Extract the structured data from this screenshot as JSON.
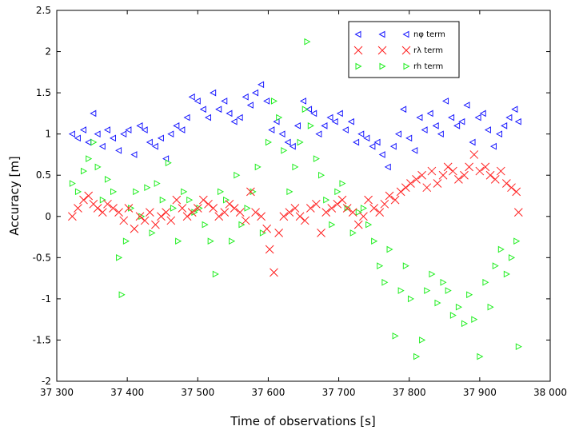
{
  "chart_data": {
    "type": "scatter",
    "xlabel": "Time of observations [s]",
    "ylabel": "Accuracy [m]",
    "xlim": [
      37300,
      38000
    ],
    "ylim": [
      -2,
      2.5
    ],
    "xticks": [
      37300,
      37400,
      37500,
      37600,
      37700,
      37800,
      37900,
      38000
    ],
    "xtick_labels": [
      "37 300",
      "37 400",
      "37 500",
      "37 600",
      "37 700",
      "37 800",
      "37 900",
      "38 000"
    ],
    "yticks": [
      -2,
      -1.5,
      -1,
      -0.5,
      0,
      0.5,
      1,
      1.5,
      2,
      2.5
    ],
    "ytick_labels": [
      "-2",
      "-1.5",
      "-1",
      "-0.5",
      "0",
      "0.5",
      "1",
      "1.5",
      "2",
      "2.5"
    ],
    "grid": false,
    "legend_position": "top-right",
    "series": [
      {
        "name": "nφ term",
        "marker": "triangle-left",
        "color": "#1a1aff",
        "x": [
          37322,
          37330,
          37338,
          37345,
          37352,
          37358,
          37365,
          37372,
          37380,
          37388,
          37395,
          37402,
          37410,
          37418,
          37425,
          37432,
          37440,
          37448,
          37455,
          37462,
          37470,
          37478,
          37485,
          37492,
          37500,
          37508,
          37515,
          37522,
          37530,
          37538,
          37545,
          37552,
          37560,
          37568,
          37575,
          37582,
          37590,
          37598,
          37605,
          37612,
          37620,
          37628,
          37635,
          37642,
          37650,
          37658,
          37665,
          37672,
          37680,
          37688,
          37695,
          37702,
          37710,
          37718,
          37725,
          37732,
          37740,
          37748,
          37755,
          37762,
          37770,
          37778,
          37785,
          37792,
          37800,
          37808,
          37815,
          37822,
          37830,
          37838,
          37845,
          37852,
          37860,
          37868,
          37875,
          37882,
          37890,
          37898,
          37905,
          37912,
          37920,
          37928,
          37935,
          37942,
          37950,
          37955
        ],
        "y": [
          1.0,
          0.95,
          1.05,
          0.9,
          1.25,
          1.0,
          0.85,
          1.05,
          0.95,
          0.8,
          1.0,
          1.05,
          0.75,
          1.1,
          1.05,
          0.9,
          0.85,
          0.95,
          0.7,
          1.0,
          1.1,
          1.05,
          1.2,
          1.45,
          1.4,
          1.3,
          1.2,
          1.5,
          1.3,
          1.4,
          1.25,
          1.15,
          1.2,
          1.45,
          1.35,
          1.5,
          1.6,
          1.4,
          1.05,
          1.15,
          1.0,
          0.9,
          0.85,
          1.1,
          1.4,
          1.3,
          1.25,
          1.0,
          1.1,
          1.2,
          1.15,
          1.25,
          1.05,
          1.15,
          0.9,
          1.0,
          0.95,
          0.85,
          0.9,
          0.75,
          0.6,
          0.85,
          1.0,
          1.3,
          0.95,
          0.8,
          1.2,
          1.05,
          1.25,
          1.1,
          1.0,
          1.4,
          1.2,
          1.1,
          1.15,
          1.35,
          0.9,
          1.2,
          1.25,
          1.05,
          0.85,
          1.0,
          1.1,
          1.2,
          1.3,
          1.15
        ]
      },
      {
        "name": "rλ term",
        "marker": "x",
        "color": "#ff2020",
        "x": [
          37322,
          37330,
          37338,
          37345,
          37352,
          37358,
          37365,
          37372,
          37380,
          37388,
          37395,
          37402,
          37410,
          37418,
          37425,
          37432,
          37440,
          37448,
          37455,
          37462,
          37470,
          37478,
          37485,
          37492,
          37500,
          37508,
          37515,
          37522,
          37530,
          37538,
          37545,
          37552,
          37560,
          37568,
          37575,
          37582,
          37590,
          37598,
          37602,
          37608,
          37615,
          37622,
          37630,
          37638,
          37645,
          37652,
          37660,
          37668,
          37675,
          37682,
          37690,
          37698,
          37705,
          37712,
          37720,
          37728,
          37735,
          37742,
          37750,
          37758,
          37765,
          37772,
          37780,
          37788,
          37795,
          37802,
          37810,
          37818,
          37825,
          37832,
          37840,
          37848,
          37855,
          37862,
          37870,
          37878,
          37885,
          37892,
          37900,
          37908,
          37915,
          37922,
          37930,
          37938,
          37945,
          37952,
          37955
        ],
        "y": [
          0.0,
          0.1,
          0.2,
          0.25,
          0.15,
          0.1,
          0.05,
          0.15,
          0.1,
          0.05,
          -0.05,
          0.1,
          -0.15,
          0.0,
          -0.05,
          0.05,
          -0.1,
          0.0,
          0.05,
          -0.05,
          0.2,
          0.1,
          0.0,
          0.05,
          0.1,
          0.2,
          0.15,
          0.1,
          0.0,
          0.05,
          0.15,
          0.1,
          0.05,
          -0.05,
          0.3,
          0.05,
          0.0,
          -0.15,
          -0.4,
          -0.68,
          -0.2,
          0.0,
          0.05,
          0.1,
          0.0,
          -0.05,
          0.1,
          0.15,
          -0.2,
          0.05,
          0.1,
          0.15,
          0.2,
          0.1,
          0.05,
          -0.1,
          0.0,
          0.2,
          0.1,
          0.05,
          0.15,
          0.25,
          0.2,
          0.3,
          0.35,
          0.4,
          0.45,
          0.5,
          0.35,
          0.55,
          0.4,
          0.5,
          0.6,
          0.55,
          0.45,
          0.5,
          0.6,
          0.75,
          0.55,
          0.6,
          0.5,
          0.45,
          0.55,
          0.4,
          0.35,
          0.3,
          0.05
        ]
      },
      {
        "name": "rh term",
        "marker": "triangle-right",
        "color": "#22ee22",
        "x": [
          37322,
          37330,
          37338,
          37345,
          37352,
          37358,
          37365,
          37372,
          37380,
          37388,
          37392,
          37398,
          37405,
          37412,
          37420,
          37428,
          37435,
          37442,
          37450,
          37458,
          37465,
          37472,
          37480,
          37488,
          37495,
          37502,
          37510,
          37518,
          37525,
          37532,
          37540,
          37548,
          37555,
          37562,
          37570,
          37578,
          37585,
          37592,
          37600,
          37608,
          37615,
          37622,
          37630,
          37638,
          37645,
          37652,
          37655,
          37660,
          37668,
          37675,
          37682,
          37690,
          37698,
          37705,
          37712,
          37720,
          37728,
          37735,
          37742,
          37750,
          37758,
          37765,
          37772,
          37780,
          37788,
          37795,
          37802,
          37810,
          37818,
          37825,
          37832,
          37840,
          37848,
          37855,
          37862,
          37870,
          37878,
          37885,
          37892,
          37900,
          37908,
          37915,
          37922,
          37930,
          37938,
          37945,
          37952,
          37955
        ],
        "y": [
          0.4,
          0.3,
          0.55,
          0.7,
          0.9,
          0.6,
          0.2,
          0.45,
          0.3,
          -0.5,
          -0.95,
          -0.3,
          0.1,
          0.3,
          0.0,
          0.35,
          -0.2,
          0.4,
          0.2,
          0.65,
          0.1,
          -0.3,
          0.3,
          0.2,
          0.05,
          0.1,
          -0.1,
          -0.3,
          -0.7,
          0.3,
          0.2,
          -0.3,
          0.5,
          -0.1,
          0.1,
          0.3,
          0.6,
          -0.2,
          0.9,
          1.4,
          1.2,
          0.8,
          0.3,
          0.6,
          0.9,
          1.3,
          2.12,
          1.1,
          0.7,
          0.5,
          0.2,
          -0.1,
          0.3,
          0.4,
          0.1,
          -0.2,
          0.05,
          0.1,
          -0.1,
          -0.3,
          -0.6,
          -0.8,
          -0.4,
          -1.45,
          -0.9,
          -0.6,
          -1.0,
          -1.7,
          -1.5,
          -0.9,
          -0.7,
          -1.05,
          -0.8,
          -0.9,
          -1.2,
          -1.1,
          -1.3,
          -0.95,
          -1.25,
          -1.7,
          -0.8,
          -1.1,
          -0.6,
          -0.4,
          -0.7,
          -0.5,
          -0.3,
          -1.58
        ]
      }
    ]
  }
}
